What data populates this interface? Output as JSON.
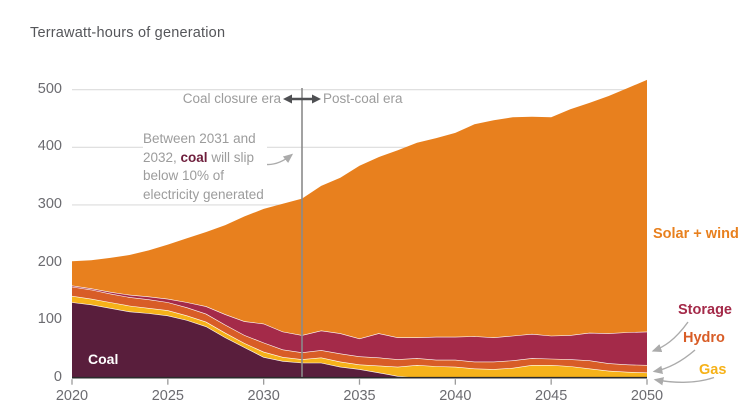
{
  "title": "Terrawatt-hours of generation",
  "annotations": {
    "era_left": "Coal closure era",
    "era_right": "Post-coal era",
    "callout": {
      "before": "Between 2031 and 2032, ",
      "highlight": "coal",
      "after": " will slip below 10% of electricity generated"
    },
    "coal_area_label": "Coal",
    "coal_area_label_color": "#FFFFFF"
  },
  "series_labels": [
    {
      "label": "Solar + wind",
      "color": "#E8801E"
    },
    {
      "label": "Storage",
      "color": "#A42A49"
    },
    {
      "label": "Hydro",
      "color": "#D85D27"
    },
    {
      "label": "Gas",
      "color": "#F6B219"
    }
  ],
  "colors": {
    "gridline": "#DCDCDC",
    "axis_line": "#2B2B2B",
    "tick": "#9A9A9A",
    "marker_line": "#8A8A8A",
    "era_arrow": "#4F5053",
    "pointer_arrow": "#ABABAB",
    "axis_text": "#6B6B70",
    "muted_text": "#9C9C9C"
  },
  "chart_data": {
    "type": "area",
    "stacked": true,
    "title": "Terrawatt-hours of generation",
    "xlabel": "",
    "ylabel": "Terrawatt-hours",
    "ylim": [
      0,
      500
    ],
    "y_ticks": [
      0,
      100,
      200,
      300,
      400,
      500
    ],
    "x_ticks": [
      2020,
      2025,
      2030,
      2035,
      2040,
      2045,
      2050
    ],
    "vline_x": 2032,
    "grid": true,
    "legend_position": "right",
    "x": [
      2020,
      2021,
      2022,
      2023,
      2024,
      2025,
      2026,
      2027,
      2028,
      2029,
      2030,
      2031,
      2032,
      2033,
      2034,
      2035,
      2036,
      2037,
      2038,
      2039,
      2040,
      2041,
      2042,
      2043,
      2044,
      2045,
      2046,
      2047,
      2048,
      2049,
      2050
    ],
    "series": [
      {
        "name": "Coal",
        "color": "#591E3C",
        "values": [
          131,
          127,
          121,
          115,
          112,
          108,
          100,
          89,
          70,
          53,
          36,
          29,
          26,
          26,
          19,
          15,
          9,
          3,
          0,
          0,
          0,
          0,
          0,
          0,
          0,
          0,
          0,
          0,
          0,
          0,
          0
        ]
      },
      {
        "name": "Gas",
        "color": "#F6B219",
        "values": [
          11,
          10,
          10,
          10,
          9,
          9,
          8,
          8,
          8,
          7,
          9,
          7,
          6,
          9,
          9,
          8,
          12,
          16,
          22,
          20,
          19,
          16,
          15,
          17,
          22,
          22,
          20,
          16,
          12,
          10,
          9
        ]
      },
      {
        "name": "Hydro",
        "color": "#D85D27",
        "values": [
          16,
          16,
          15,
          15,
          15,
          14,
          14,
          14,
          14,
          14,
          16,
          13,
          12,
          13,
          14,
          14,
          14,
          13,
          12,
          11,
          12,
          12,
          13,
          13,
          12,
          11,
          12,
          14,
          13,
          13,
          13
        ]
      },
      {
        "name": "Storage",
        "color": "#A42A49",
        "values": [
          2,
          2,
          3,
          4,
          5,
          6,
          9,
          13,
          18,
          24,
          33,
          31,
          30,
          34,
          35,
          31,
          42,
          38,
          36,
          40,
          40,
          44,
          42,
          43,
          42,
          40,
          42,
          48,
          52,
          56,
          58
        ]
      },
      {
        "name": "Solar + wind",
        "color": "#E8801E",
        "values": [
          42,
          49,
          59,
          69,
          80,
          94,
          111,
          129,
          155,
          182,
          199,
          222,
          237,
          251,
          270,
          300,
          306,
          325,
          338,
          345,
          354,
          368,
          377,
          379,
          377,
          379,
          392,
          399,
          412,
          424,
          437
        ]
      }
    ]
  }
}
